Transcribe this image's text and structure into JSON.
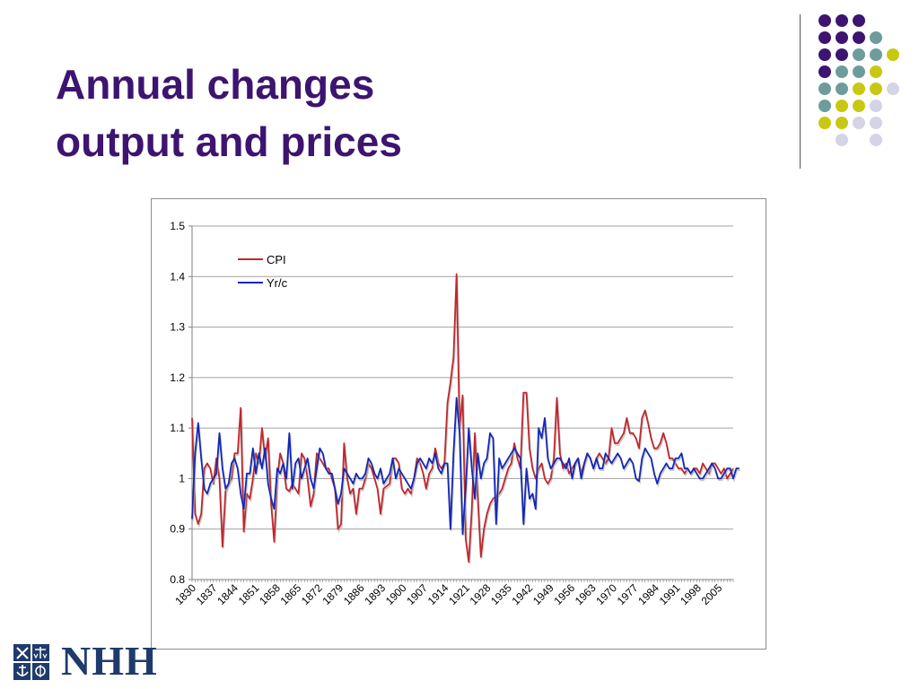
{
  "slide": {
    "title_line1": "Annual changes",
    "title_line2": "output and prices"
  },
  "decoration": {
    "dot_colors": {
      "purple": "#3d1470",
      "teal": "#6e9c9c",
      "yellow": "#c8c814",
      "lavender": "#d4d4e6"
    },
    "grid": [
      [
        "",
        "purple",
        "purple",
        "purple",
        ""
      ],
      [
        "",
        "purple",
        "purple",
        "purple",
        "teal"
      ],
      [
        "",
        "purple",
        "purple",
        "teal",
        "teal",
        "yellow"
      ],
      [
        "",
        "purple",
        "teal",
        "teal",
        "yellow"
      ],
      [
        "",
        "teal",
        "teal",
        "yellow",
        "yellow",
        "lavender"
      ],
      [
        "",
        "teal",
        "yellow",
        "yellow",
        "lavender"
      ],
      [
        "",
        "yellow",
        "yellow",
        "lavender",
        "lavender"
      ],
      [
        "",
        "",
        "lavender",
        "",
        "lavender"
      ]
    ]
  },
  "logo": {
    "text": "NHH",
    "color": "#1f3b6c",
    "mark_icon": "nhh-emblem-icon"
  },
  "chart_data": {
    "type": "line",
    "title": "",
    "xlabel": "",
    "ylabel": "",
    "ylim": [
      0.8,
      1.5
    ],
    "yticks": [
      0.8,
      0.9,
      1,
      1.1,
      1.2,
      1.3,
      1.4,
      1.5
    ],
    "ytick_labels": [
      "0.8",
      "0.9",
      "1",
      "1.1",
      "1.2",
      "1.3",
      "1.4",
      "1.5"
    ],
    "x_start": 1830,
    "x_end": 2010,
    "xtick_labels": [
      "1830",
      "1837",
      "1844",
      "1851",
      "1858",
      "1865",
      "1872",
      "1879",
      "1886",
      "1893",
      "1900",
      "1907",
      "1914",
      "1921",
      "1928",
      "1935",
      "1942",
      "1949",
      "1956",
      "1963",
      "1970",
      "1977",
      "1984",
      "1991",
      "1998",
      "2005"
    ],
    "grid": true,
    "legend_position": "top-left",
    "series": [
      {
        "name": "CPI",
        "color": "#c0282d",
        "values": [
          1.12,
          0.93,
          0.91,
          0.93,
          1.02,
          1.03,
          1.02,
          0.99,
          1.04,
          1.0,
          0.865,
          0.975,
          0.99,
          1.0,
          1.05,
          1.05,
          1.14,
          0.895,
          0.97,
          0.96,
          1.0,
          1.05,
          1.03,
          1.1,
          1.04,
          1.08,
          0.95,
          0.875,
          1.0,
          1.05,
          1.03,
          0.98,
          0.975,
          0.99,
          0.98,
          0.97,
          1.05,
          1.04,
          1.0,
          0.945,
          0.97,
          1.05,
          1.04,
          1.03,
          1.02,
          1.02,
          1.0,
          0.98,
          0.9,
          0.91,
          1.07,
          1.0,
          0.97,
          0.98,
          0.93,
          0.98,
          0.98,
          1.0,
          1.03,
          1.02,
          1.0,
          0.98,
          0.93,
          0.98,
          0.985,
          0.99,
          1.04,
          1.04,
          1.03,
          0.98,
          0.97,
          0.98,
          0.97,
          1.0,
          1.04,
          1.03,
          1.01,
          0.98,
          1.01,
          1.02,
          1.06,
          1.03,
          1.02,
          1.03,
          1.15,
          1.19,
          1.24,
          1.405,
          1.1,
          1.165,
          0.88,
          0.835,
          0.94,
          1.09,
          0.96,
          0.845,
          0.9,
          0.93,
          0.95,
          0.96,
          0.965,
          0.97,
          0.98,
          1.0,
          1.02,
          1.03,
          1.07,
          1.04,
          1.02,
          1.17,
          1.17,
          1.06,
          1.02,
          1.0,
          1.02,
          1.03,
          1.0,
          0.99,
          1.0,
          1.04,
          1.16,
          1.05,
          1.02,
          1.03,
          1.01,
          1.02,
          1.03,
          1.04,
          1.01,
          1.03,
          1.05,
          1.04,
          1.02,
          1.04,
          1.05,
          1.04,
          1.03,
          1.04,
          1.1,
          1.07,
          1.07,
          1.08,
          1.09,
          1.12,
          1.09,
          1.09,
          1.08,
          1.06,
          1.12,
          1.135,
          1.11,
          1.08,
          1.06,
          1.06,
          1.07,
          1.09,
          1.07,
          1.04,
          1.04,
          1.03,
          1.02,
          1.02,
          1.01,
          1.02,
          1.01,
          1.02,
          1.02,
          1.01,
          1.03,
          1.02,
          1.01,
          1.03,
          1.03,
          1.02,
          1.01,
          1.02,
          1.0,
          1.01,
          1.02
        ]
      },
      {
        "name": "Yr/c",
        "color": "#1428b4",
        "values": [
          0.92,
          1.05,
          1.11,
          1.04,
          0.98,
          0.97,
          0.99,
          1.0,
          1.01,
          1.09,
          1.02,
          0.98,
          0.99,
          1.03,
          1.04,
          1.02,
          0.97,
          0.94,
          1.01,
          1.01,
          1.06,
          1.01,
          1.05,
          1.02,
          1.06,
          0.99,
          0.96,
          0.94,
          1.02,
          1.01,
          1.03,
          1.0,
          1.09,
          0.98,
          1.03,
          1.04,
          1.0,
          1.02,
          1.04,
          1.0,
          0.98,
          1.02,
          1.06,
          1.05,
          1.02,
          1.01,
          1.01,
          0.98,
          0.95,
          0.97,
          1.02,
          1.01,
          1.0,
          0.99,
          1.01,
          1.0,
          1.0,
          1.01,
          1.04,
          1.03,
          1.01,
          1.0,
          1.02,
          0.99,
          1.0,
          1.01,
          1.04,
          1.0,
          1.02,
          1.01,
          1.0,
          0.99,
          0.98,
          1.0,
          1.03,
          1.04,
          1.03,
          1.02,
          1.04,
          1.03,
          1.05,
          1.02,
          1.01,
          1.03,
          1.03,
          0.9,
          1.05,
          1.16,
          1.09,
          0.89,
          0.98,
          1.1,
          1.02,
          0.96,
          1.05,
          1.0,
          1.03,
          1.04,
          1.09,
          1.08,
          0.91,
          1.04,
          1.02,
          1.03,
          1.04,
          1.05,
          1.06,
          1.05,
          1.04,
          0.91,
          1.02,
          0.96,
          0.97,
          0.94,
          1.1,
          1.08,
          1.12,
          1.04,
          1.02,
          1.03,
          1.04,
          1.04,
          1.03,
          1.02,
          1.04,
          1.0,
          1.03,
          1.04,
          1.0,
          1.03,
          1.05,
          1.04,
          1.02,
          1.04,
          1.02,
          1.02,
          1.05,
          1.04,
          1.03,
          1.04,
          1.05,
          1.04,
          1.02,
          1.03,
          1.04,
          1.03,
          1.0,
          0.995,
          1.04,
          1.06,
          1.05,
          1.04,
          1.01,
          0.99,
          1.01,
          1.02,
          1.03,
          1.02,
          1.02,
          1.04,
          1.04,
          1.05,
          1.02,
          1.02,
          1.01,
          1.02,
          1.01,
          1.0,
          1.0,
          1.01,
          1.02,
          1.03,
          1.02,
          1.0,
          1.0,
          1.01,
          1.02,
          1.02,
          1.0,
          1.02,
          1.02
        ]
      }
    ]
  }
}
